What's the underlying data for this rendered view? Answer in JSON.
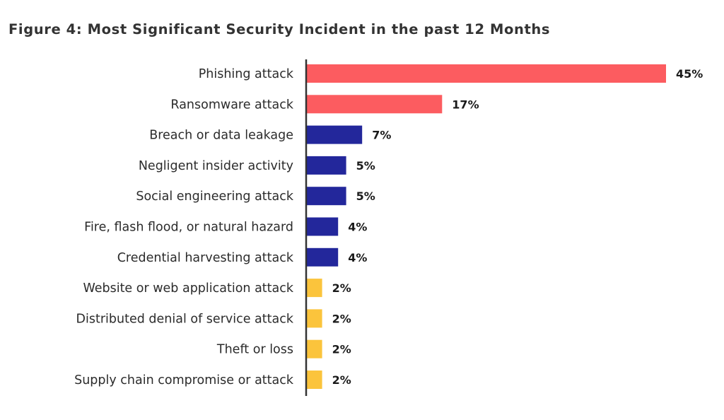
{
  "figure": {
    "title": "Figure 4: Most Significant Security Incident in the past 12 Months"
  },
  "chart_data": {
    "type": "bar",
    "orientation": "horizontal",
    "title": "Figure 4: Most Significant Security Incident in the past 12 Months",
    "xlabel": "",
    "ylabel": "",
    "xlim": [
      0,
      45
    ],
    "grid": false,
    "legend": "none",
    "value_suffix": "%",
    "categories": [
      "Phishing attack",
      "Ransomware attack",
      "Breach or data leakage",
      "Negligent insider activity",
      "Social engineering attack",
      "Fire, flash flood, or natural hazard",
      "Credential harvesting attack",
      "Website or web application attack",
      "Distributed denial of service attack",
      "Theft or loss",
      "Supply chain compromise or attack"
    ],
    "values": [
      45,
      17,
      7,
      5,
      5,
      4,
      4,
      2,
      2,
      2,
      2
    ],
    "bar_colors": [
      "#fc5c60",
      "#fc5c60",
      "#23279b",
      "#23279b",
      "#23279b",
      "#23279b",
      "#23279b",
      "#fbc43c",
      "#fbc43c",
      "#fbc43c",
      "#fbc43c"
    ],
    "axis_color": "#333333"
  }
}
